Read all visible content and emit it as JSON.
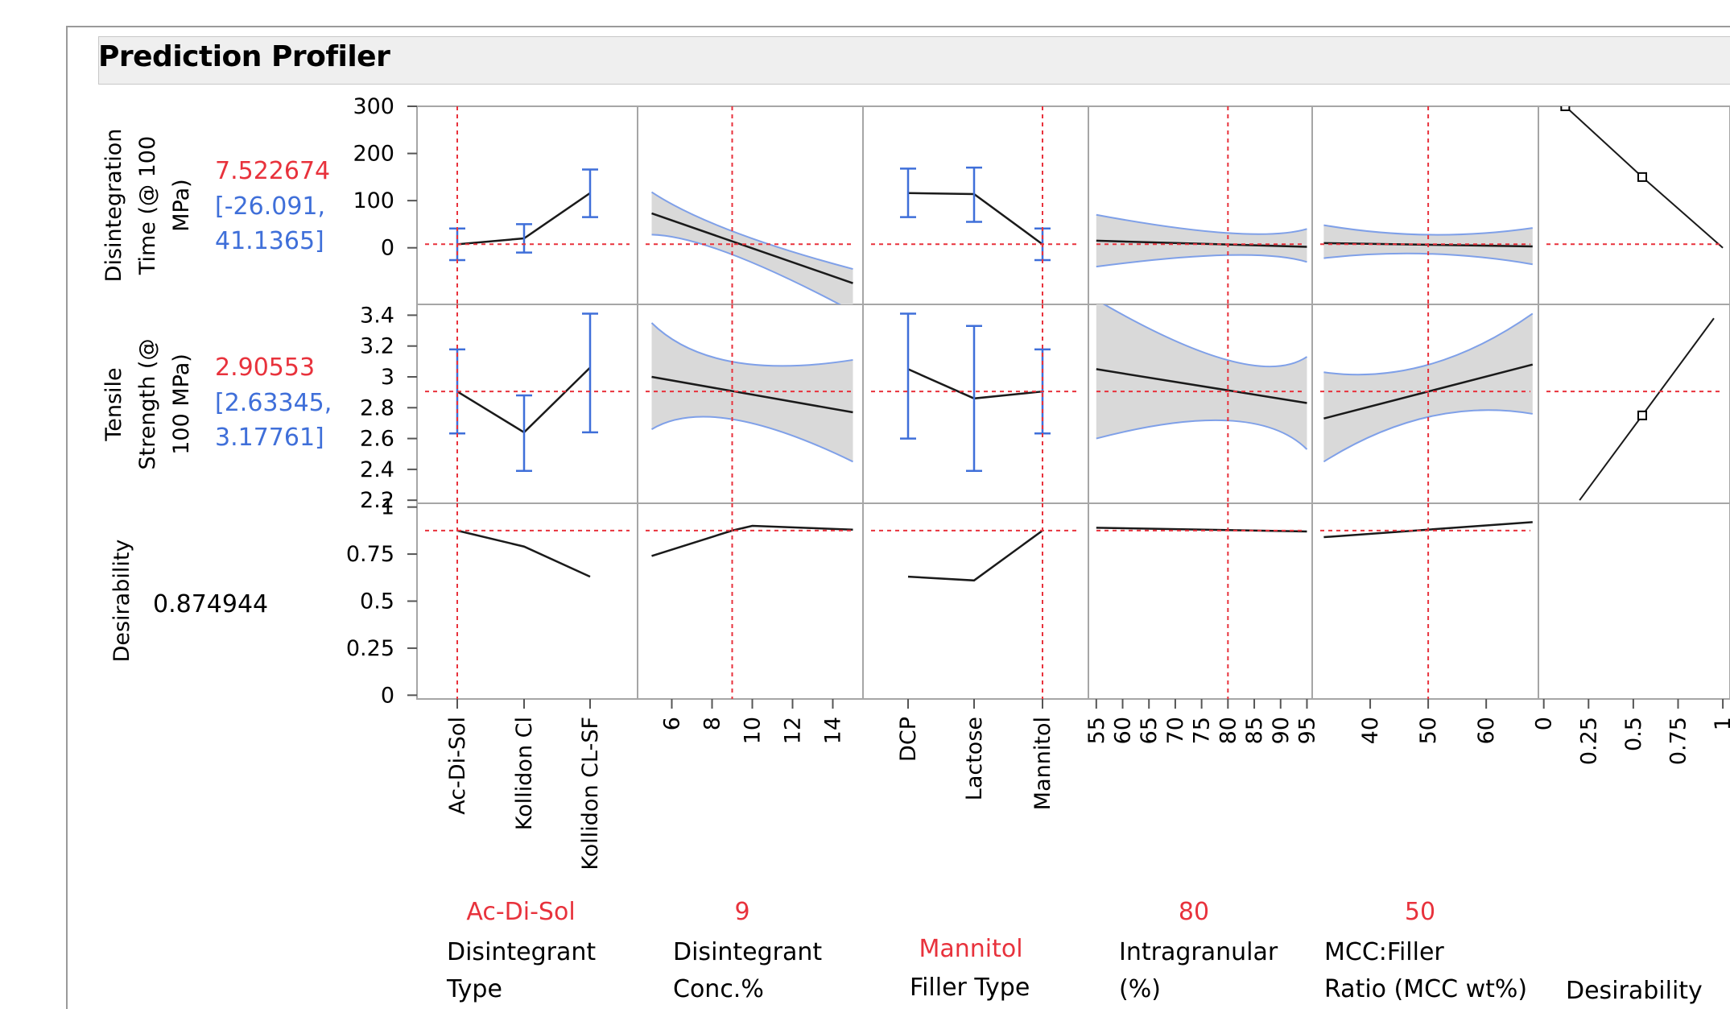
{
  "header": {
    "title": "Prediction Profiler"
  },
  "responses": [
    {
      "name_lines": [
        "Disintegration",
        "Time (@ 100",
        "MPa)"
      ],
      "value": "7.522674",
      "ci_lines": [
        "[-26.091,",
        "41.1365]"
      ],
      "y_ticks": [
        "300",
        "200",
        "100",
        "0"
      ]
    },
    {
      "name_lines": [
        "Tensile",
        "Strength (@",
        "100 MPa)"
      ],
      "value": "2.90553",
      "ci_lines": [
        "[2.63345,",
        "3.17761]"
      ],
      "y_ticks": [
        "3.4",
        "3.2",
        "3",
        "2.8",
        "2.6",
        "2.4",
        "2.2"
      ]
    },
    {
      "name_lines": [
        "Desirability"
      ],
      "value": "0.874944",
      "ci_lines": [],
      "y_ticks": [
        "1",
        "0.75",
        "0.5",
        "0.25",
        "0"
      ]
    }
  ],
  "factors": [
    {
      "value": "Ac-Di-Sol",
      "name_lines": [
        "Disintegrant",
        "Type"
      ],
      "x_ticks": [
        "Ac-Di-Sol",
        "Kollidon Cl",
        "Kollidon CL-SF"
      ]
    },
    {
      "value": "9",
      "name_lines": [
        "Disintegrant",
        "Conc.%"
      ],
      "x_ticks": [
        "6",
        "8",
        "10",
        "12",
        "14"
      ]
    },
    {
      "value": "Mannitol",
      "name_lines": [
        "Filler Type"
      ],
      "x_ticks": [
        "DCP",
        "Lactose",
        "Mannitol"
      ]
    },
    {
      "value": "80",
      "name_lines": [
        "Intragranular",
        "(%)"
      ],
      "x_ticks": [
        "55",
        "60",
        "65",
        "70",
        "75",
        "80",
        "85",
        "90",
        "95"
      ]
    },
    {
      "value": "50",
      "name_lines": [
        "MCC:Filler",
        "Ratio (MCC wt%)"
      ],
      "x_ticks": [
        "40",
        "50",
        "60"
      ]
    },
    {
      "value": "",
      "name_lines": [
        "",
        "Desirability"
      ],
      "x_ticks": [
        "0",
        "0.25",
        "0.5",
        "0.75",
        "1"
      ]
    }
  ],
  "colors": {
    "current_value": "#e8323c",
    "ci": "#3f6fd9",
    "band": "#d9d9d9",
    "trace": "#1a1a1a",
    "crosshair": "#e8323c"
  },
  "chart_data": {
    "type": "line",
    "title": "Prediction Profiler",
    "panels": [
      {
        "response": "Disintegration Time (@ 100 MPa)",
        "factor": "Disintegrant Type",
        "kind": "categorical",
        "categories": [
          "Ac-Di-Sol",
          "Kollidon Cl",
          "Kollidon CL-SF"
        ],
        "y": [
          7.5,
          20,
          116
        ],
        "lo": [
          -26,
          -10,
          65
        ],
        "hi": [
          41,
          50,
          166
        ],
        "current": "Ac-Di-Sol"
      },
      {
        "response": "Disintegration Time (@ 100 MPa)",
        "factor": "Disintegrant Conc.%",
        "kind": "continuous",
        "x": [
          5,
          15
        ],
        "y": [
          73,
          -75
        ],
        "lo": [
          28,
          -135
        ],
        "hi": [
          118,
          -45
        ],
        "current": 9
      },
      {
        "response": "Disintegration Time (@ 100 MPa)",
        "factor": "Filler Type",
        "kind": "categorical",
        "categories": [
          "DCP",
          "Lactose",
          "Mannitol"
        ],
        "y": [
          116,
          114,
          7.5
        ],
        "lo": [
          65,
          55,
          -26
        ],
        "hi": [
          168,
          170,
          41
        ],
        "current": "Mannitol"
      },
      {
        "response": "Disintegration Time (@ 100 MPa)",
        "factor": "Intragranular (%)",
        "kind": "continuous",
        "x": [
          55,
          95
        ],
        "y": [
          15,
          2
        ],
        "lo": [
          -40,
          -30
        ],
        "hi": [
          70,
          40
        ],
        "current": 80
      },
      {
        "response": "Disintegration Time (@ 100 MPa)",
        "factor": "MCC:Filler Ratio (MCC wt%)",
        "kind": "continuous",
        "x": [
          32,
          68
        ],
        "y": [
          10,
          3
        ],
        "lo": [
          -22,
          -35
        ],
        "hi": [
          48,
          42
        ],
        "current": 50
      },
      {
        "response": "Disintegration Time (@ 100 MPa)",
        "factor": "Desirability",
        "kind": "desirability",
        "x": [
          0.12,
          0.55,
          1
        ],
        "y": [
          300,
          150,
          0
        ]
      },
      {
        "response": "Tensile Strength (@ 100 MPa)",
        "factor": "Disintegrant Type",
        "kind": "categorical",
        "categories": [
          "Ac-Di-Sol",
          "Kollidon Cl",
          "Kollidon CL-SF"
        ],
        "y": [
          2.905,
          2.64,
          3.06
        ],
        "lo": [
          2.633,
          2.39,
          2.64
        ],
        "hi": [
          3.178,
          2.88,
          3.41
        ],
        "current": "Ac-Di-Sol"
      },
      {
        "response": "Tensile Strength (@ 100 MPa)",
        "factor": "Disintegrant Conc.%",
        "kind": "continuous",
        "x": [
          5,
          15
        ],
        "y": [
          3.0,
          2.77
        ],
        "lo": [
          2.66,
          2.45
        ],
        "hi": [
          3.35,
          3.11
        ],
        "current": 9
      },
      {
        "response": "Tensile Strength (@ 100 MPa)",
        "factor": "Filler Type",
        "kind": "categorical",
        "categories": [
          "DCP",
          "Lactose",
          "Mannitol"
        ],
        "y": [
          3.05,
          2.86,
          2.905
        ],
        "lo": [
          2.6,
          2.39,
          2.633
        ],
        "hi": [
          3.41,
          3.33,
          3.178
        ],
        "current": "Mannitol"
      },
      {
        "response": "Tensile Strength (@ 100 MPa)",
        "factor": "Intragranular (%)",
        "kind": "continuous",
        "x": [
          55,
          95
        ],
        "y": [
          3.05,
          2.83
        ],
        "lo": [
          2.6,
          2.53
        ],
        "hi": [
          3.5,
          3.13
        ],
        "current": 80
      },
      {
        "response": "Tensile Strength (@ 100 MPa)",
        "factor": "MCC:Filler Ratio (MCC wt%)",
        "kind": "continuous",
        "x": [
          32,
          68
        ],
        "y": [
          2.73,
          3.08
        ],
        "lo": [
          2.45,
          2.76
        ],
        "hi": [
          3.03,
          3.41
        ],
        "current": 50
      },
      {
        "response": "Tensile Strength (@ 100 MPa)",
        "factor": "Desirability",
        "kind": "desirability",
        "x": [
          0.2,
          0.55,
          0.95
        ],
        "y": [
          2.2,
          2.75,
          3.38
        ]
      },
      {
        "response": "Desirability",
        "factor": "Disintegrant Type",
        "kind": "categorical",
        "categories": [
          "Ac-Di-Sol",
          "Kollidon Cl",
          "Kollidon CL-SF"
        ],
        "y": [
          0.875,
          0.79,
          0.63
        ],
        "current": "Ac-Di-Sol"
      },
      {
        "response": "Desirability",
        "factor": "Disintegrant Conc.%",
        "kind": "continuous",
        "x": [
          5,
          9,
          10,
          15
        ],
        "y": [
          0.74,
          0.875,
          0.9,
          0.88
        ],
        "current": 9
      },
      {
        "response": "Desirability",
        "factor": "Filler Type",
        "kind": "categorical",
        "categories": [
          "DCP",
          "Lactose",
          "Mannitol"
        ],
        "y": [
          0.63,
          0.61,
          0.875
        ],
        "current": "Mannitol"
      },
      {
        "response": "Desirability",
        "factor": "Intragranular (%)",
        "kind": "continuous",
        "x": [
          55,
          95
        ],
        "y": [
          0.89,
          0.87
        ],
        "current": 80
      },
      {
        "response": "Desirability",
        "factor": "MCC:Filler Ratio (MCC wt%)",
        "kind": "continuous",
        "x": [
          32,
          68
        ],
        "y": [
          0.84,
          0.92
        ],
        "current": 50
      }
    ]
  }
}
